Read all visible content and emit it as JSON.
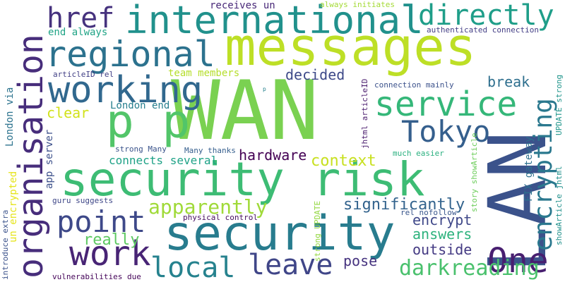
{
  "words": [
    {
      "text": "messages",
      "color": "#bddf26",
      "vertical": false
    },
    {
      "text": "WAN",
      "color": "#7ad151",
      "vertical": false
    },
    {
      "text": "p p",
      "color": "#52c569",
      "vertical": false
    },
    {
      "text": "security risk",
      "color": "#3dbc74",
      "vertical": false
    },
    {
      "text": "security",
      "color": "#287c8e",
      "vertical": false
    },
    {
      "text": "LAN",
      "color": "#3b528b",
      "vertical": true
    },
    {
      "text": "international",
      "color": "#21918c",
      "vertical": false
    },
    {
      "text": "regional",
      "color": "#2c728e",
      "vertical": false
    },
    {
      "text": "working",
      "color": "#31688e",
      "vertical": false
    },
    {
      "text": "organisation",
      "color": "#472d7b",
      "vertical": true
    },
    {
      "text": "href",
      "color": "#46327e",
      "vertical": false
    },
    {
      "text": "directly",
      "color": "#1f9e89",
      "vertical": false
    },
    {
      "text": "service",
      "color": "#35b779",
      "vertical": false
    },
    {
      "text": "encrypting",
      "color": "#2a788e",
      "vertical": true
    },
    {
      "text": "Tokyo",
      "color": "#355f8d",
      "vertical": false
    },
    {
      "text": "point",
      "color": "#3e4989",
      "vertical": false
    },
    {
      "text": "work",
      "color": "#482475",
      "vertical": false
    },
    {
      "text": "local",
      "color": "#26828e",
      "vertical": false
    },
    {
      "text": "leave",
      "color": "#404688",
      "vertical": false
    },
    {
      "text": "One",
      "color": "#481f70",
      "vertical": false
    },
    {
      "text": "apparently",
      "color": "#a0da39",
      "vertical": false
    },
    {
      "text": "darkreading",
      "color": "#4ac16d",
      "vertical": false
    },
    {
      "text": "significantly",
      "color": "#33638d",
      "vertical": false
    },
    {
      "text": "hardware",
      "color": "#440154",
      "vertical": false
    },
    {
      "text": "context",
      "color": "#c8e020",
      "vertical": false
    },
    {
      "text": "decided",
      "color": "#3e4a89",
      "vertical": false
    },
    {
      "text": "break",
      "color": "#2e6f8e",
      "vertical": false
    },
    {
      "text": "really",
      "color": "#5ec962",
      "vertical": false
    },
    {
      "text": "clear",
      "color": "#d2e21b",
      "vertical": false
    },
    {
      "text": "encrypt",
      "color": "#3f4889",
      "vertical": false
    },
    {
      "text": "answers",
      "color": "#2db27d",
      "vertical": false
    },
    {
      "text": "outside",
      "color": "#443a83",
      "vertical": false
    },
    {
      "text": "pose",
      "color": "#46337f",
      "vertical": false
    },
    {
      "text": "connects several",
      "color": "#1fa287",
      "vertical": false
    },
    {
      "text": "London end",
      "color": "#277f8e",
      "vertical": false
    },
    {
      "text": "team members",
      "color": "#b5de2b",
      "vertical": false
    },
    {
      "text": "end always",
      "color": "#20a486",
      "vertical": false
    },
    {
      "text": "receives un",
      "color": "#482878",
      "vertical": false
    },
    {
      "text": "always initiates",
      "color": "#a5db36",
      "vertical": false
    },
    {
      "text": "authenticated connection",
      "color": "#433e85",
      "vertical": false
    },
    {
      "text": "connection mainly",
      "color": "#3b518b",
      "vertical": false
    },
    {
      "text": "articleID rel",
      "color": "#424086",
      "vertical": false
    },
    {
      "text": "strong Many",
      "color": "#3a538b",
      "vertical": false
    },
    {
      "text": "Many thanks",
      "color": "#355e8d",
      "vertical": false
    },
    {
      "text": "much easier",
      "color": "#2ab07f",
      "vertical": false
    },
    {
      "text": "guru suggests",
      "color": "#3f4788",
      "vertical": false
    },
    {
      "text": "physical control",
      "color": "#470d60",
      "vertical": false
    },
    {
      "text": "vulnerabilities due",
      "color": "#450559",
      "vertical": false
    },
    {
      "text": "rel nofollow",
      "color": "#39568c",
      "vertical": false
    },
    {
      "text": "London via",
      "color": "#2c738e",
      "vertical": true
    },
    {
      "text": "app server",
      "color": "#3c508b",
      "vertical": true
    },
    {
      "text": "un encrypted",
      "color": "#e5e419",
      "vertical": true
    },
    {
      "text": "introduce extra",
      "color": "#3b528b",
      "vertical": true
    },
    {
      "text": "jhtml articleID",
      "color": "#481a6c",
      "vertical": true
    },
    {
      "text": "FIX gateway",
      "color": "#2d708e",
      "vertical": true
    },
    {
      "text": "story showArticle",
      "color": "#6ccd5a",
      "vertical": true
    },
    {
      "text": "showArticle jhtml",
      "color": "#21918c",
      "vertical": true
    },
    {
      "text": "UPDATE strong",
      "color": "#1f958b",
      "vertical": true
    },
    {
      "text": "strong UPDATE",
      "color": "#93d741",
      "vertical": true
    },
    {
      "text": "p",
      "color": "#26828e",
      "vertical": false
    }
  ]
}
